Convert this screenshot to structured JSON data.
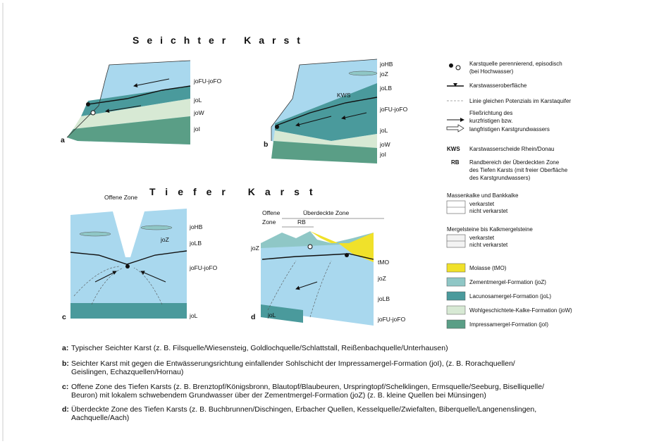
{
  "sections": [
    {
      "title": "Seichter Karst"
    },
    {
      "title": "Tiefer Karst"
    }
  ],
  "panels": [
    {
      "letter": "a",
      "labels": [
        "joFU-joFO",
        "joL",
        "joW",
        "joI"
      ]
    },
    {
      "letter": "b",
      "labels": [
        "joHB",
        "joZ",
        "joLB",
        "KWS",
        "joFU-joFO",
        "joL",
        "joW",
        "joI"
      ]
    },
    {
      "letter": "c",
      "labels": [
        "Offene Zone",
        "joHB",
        "joZ",
        "joLB",
        "joFU-joFO",
        "joL"
      ]
    },
    {
      "letter": "d",
      "labels": [
        "Offene",
        "Zone",
        "Überdeckte Zone",
        "RB",
        "joZ",
        "tMO",
        "joZ",
        "joLB",
        "joL",
        "joFU-joFO"
      ]
    }
  ],
  "legend": {
    "spring": [
      "Karstquelle perennierend, episodisch",
      "(bei Hochwasser)"
    ],
    "water_table": "Karstwasseroberfläche",
    "equipotential": "Linie gleichen Potenzials im Karstaquifer",
    "flow": [
      "Fließrichtung des",
      "kurzfristigen bzw.",
      "langfristigen Karstgrundwassers"
    ],
    "kws": {
      "abbr": "KWS",
      "text": "Karstwasserscheide Rhein/Donau"
    },
    "rb": {
      "abbr": "RB",
      "lines": [
        "Randbereich der Überdeckten Zone",
        "des Tiefen Karsts (mit freier Oberfläche",
        "des Karstgrundwassers)"
      ]
    },
    "limestone": {
      "heading": "Massenkalke und Bankkalke",
      "items": [
        "verkarstet",
        "nicht verkarstet"
      ]
    },
    "marl": {
      "heading": "Mergelsteine bis Kalkmergelsteine",
      "items": [
        "verkarstet",
        "nicht verkarstet"
      ]
    },
    "formations": [
      "Molasse (tMO)",
      "Zementmergel-Formation (joZ)",
      "Lacunosamergel-Formation (joL)",
      "Wohlgeschichtete-Kalke-Formation (joW)",
      "Impressamergel-Formation (joI)"
    ]
  },
  "captions": [
    {
      "letter": "a:",
      "lines": [
        "Typischer Seichter Karst (z. B. Filsquelle/Wiesensteig, Goldlochquelle/Schlattstall, Reißenbachquelle/Unterhausen)"
      ]
    },
    {
      "letter": "b:",
      "lines": [
        "Seichter Karst mit gegen die Entwässerungsrichtung einfallender Sohlschicht der Impressamergel-Formation (joI), (z. B. Rorachquellen/",
        "Geislingen, Echazquellen/Hornau)"
      ]
    },
    {
      "letter": "c:",
      "lines": [
        "Offene Zone des Tiefen Karsts (z. B. Brenztopf/Königsbronn, Blautopf/Blaubeuren, Urspringtopf/Schelklingen, Ermsquelle/Seeburg, Biselliquelle/",
        "Beuron) mit lokalem schwebendem Grundwasser über der Zementmergel-Formation (joZ) (z. B. kleine Quellen bei Münsingen)"
      ]
    },
    {
      "letter": "d:",
      "lines": [
        "Überdeckte Zone des Tiefen Karsts (z. B. Buchbrunnen/Dischingen, Erbacher Quellen, Kesselquelle/Zwiefalten, Biberquelle/Langenenslingen,",
        "Aachquelle/Aach)"
      ]
    }
  ]
}
